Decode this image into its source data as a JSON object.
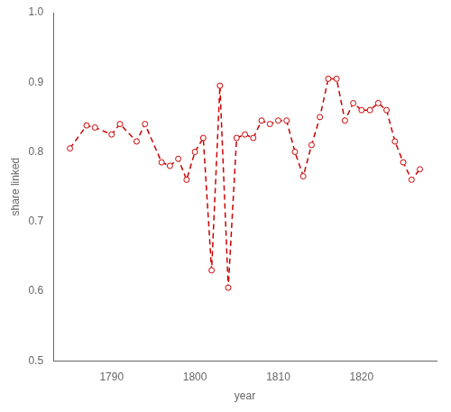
{
  "chart_data": {
    "type": "line",
    "x": [
      1785,
      1787,
      1788,
      1790,
      1791,
      1793,
      1794,
      1796,
      1797,
      1798,
      1799,
      1800,
      1801,
      1802,
      1803,
      1804,
      1805,
      1806,
      1807,
      1808,
      1809,
      1810,
      1811,
      1812,
      1813,
      1814,
      1815,
      1816,
      1817,
      1818,
      1819,
      1820,
      1821,
      1822,
      1823,
      1824,
      1825,
      1826,
      1827
    ],
    "values": [
      0.805,
      0.838,
      0.835,
      0.825,
      0.84,
      0.815,
      0.84,
      0.785,
      0.78,
      0.79,
      0.76,
      0.8,
      0.82,
      0.63,
      0.895,
      0.605,
      0.82,
      0.825,
      0.82,
      0.845,
      0.84,
      0.845,
      0.845,
      0.8,
      0.765,
      0.81,
      0.85,
      0.905,
      0.905,
      0.845,
      0.87,
      0.86,
      0.86,
      0.87,
      0.86,
      0.815,
      0.785,
      0.76,
      0.775
    ],
    "xlabel": "year",
    "ylabel": "share linked",
    "xlim": [
      1783,
      1829
    ],
    "ylim": [
      0.5,
      1.0
    ],
    "xticks": [
      1790,
      1800,
      1810,
      1820
    ],
    "yticks": [
      0.5,
      0.6,
      0.7,
      0.8,
      0.9,
      {
        "value": 1.0,
        "label": "1.0"
      }
    ],
    "color": "#cc0000",
    "marker": "circle",
    "line_style": "dashed",
    "grid": false,
    "legend": false
  }
}
